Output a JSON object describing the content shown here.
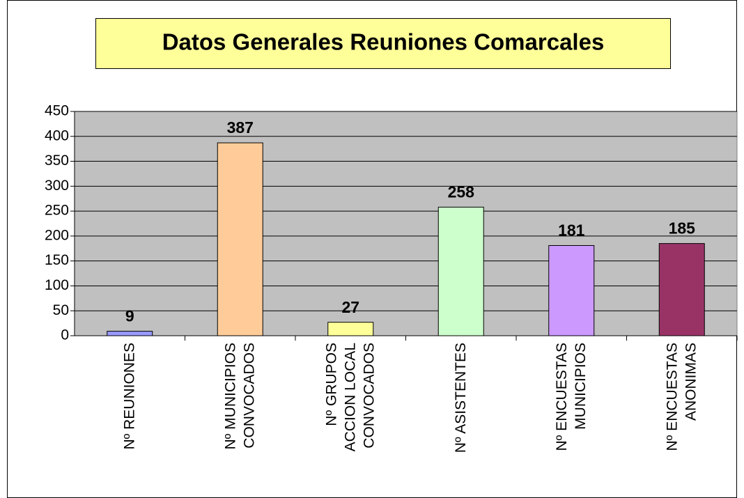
{
  "chart_data": {
    "type": "bar",
    "title": "Datos Generales Reuniones Comarcales",
    "categories": [
      "Nº REUNIONES",
      "Nº MUNICIPIOS\nCONVOCADOS",
      "Nº GRUPOS\nACCION LOCAL\nCONVOCADOS",
      "Nº ASISTENTES",
      "Nº ENCUESTAS\nMUNICIPIOS",
      "Nº ENCUESTAS\nANONIMAS"
    ],
    "values": [
      9,
      387,
      27,
      258,
      181,
      185
    ],
    "colors": [
      "#9999ff",
      "#ffcc99",
      "#ffff99",
      "#ccffcc",
      "#cc99ff",
      "#993366"
    ],
    "ylim": [
      0,
      450
    ],
    "yticks": [
      0,
      50,
      100,
      150,
      200,
      250,
      300,
      350,
      400,
      450
    ],
    "grid": true
  }
}
